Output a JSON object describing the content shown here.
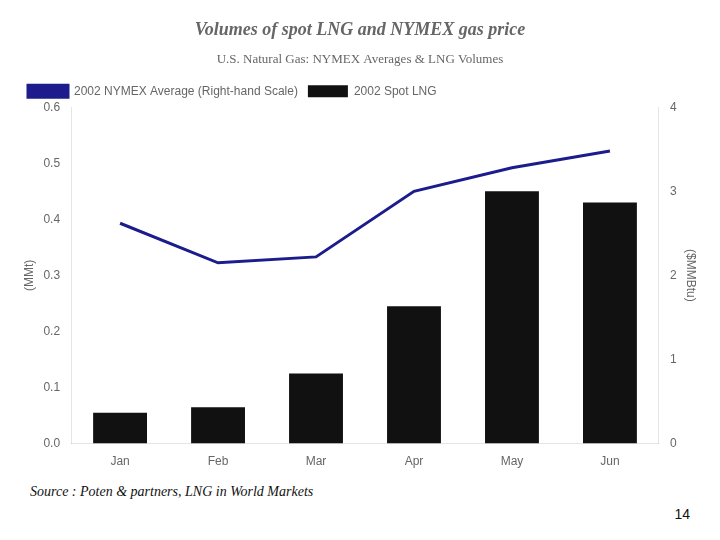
{
  "chart_data": {
    "type": "bar",
    "title": "Volumes of spot LNG and NYMEX gas price",
    "subtitle": "U.S. Natural Gas: NYMEX Averages & LNG Volumes",
    "annotations": [
      "Source : Poten & partners, LNG in World Markets",
      "14"
    ],
    "categories": [
      "Jan",
      "Feb",
      "Mar",
      "Apr",
      "May",
      "Jun"
    ],
    "series": [
      {
        "name": "2002 Spot LNG",
        "type": "bar",
        "color": "#111111",
        "values": [
          0.055,
          0.065,
          0.125,
          0.245,
          0.45,
          0.43
        ]
      },
      {
        "name": "2002 NYMEX Average (Right-hand Scale)",
        "type": "line",
        "color": "#1c1c8c",
        "axis": "y2",
        "values": [
          2.62,
          2.15,
          2.22,
          3.0,
          3.28,
          3.48
        ]
      }
    ],
    "ylabel": "(MMt)",
    "y2label": "($MMBtu)",
    "ylim": [
      0.0,
      0.6
    ],
    "yticks": [
      {
        "value": 0.0,
        "label": "0.0"
      },
      0.1,
      0.2,
      0.3,
      0.4,
      0.5,
      0.6
    ],
    "y2lim": [
      0.0,
      4.0
    ],
    "y2ticks": [
      0,
      1,
      2,
      3,
      4
    ],
    "legend": "upper left",
    "grid": false
  }
}
